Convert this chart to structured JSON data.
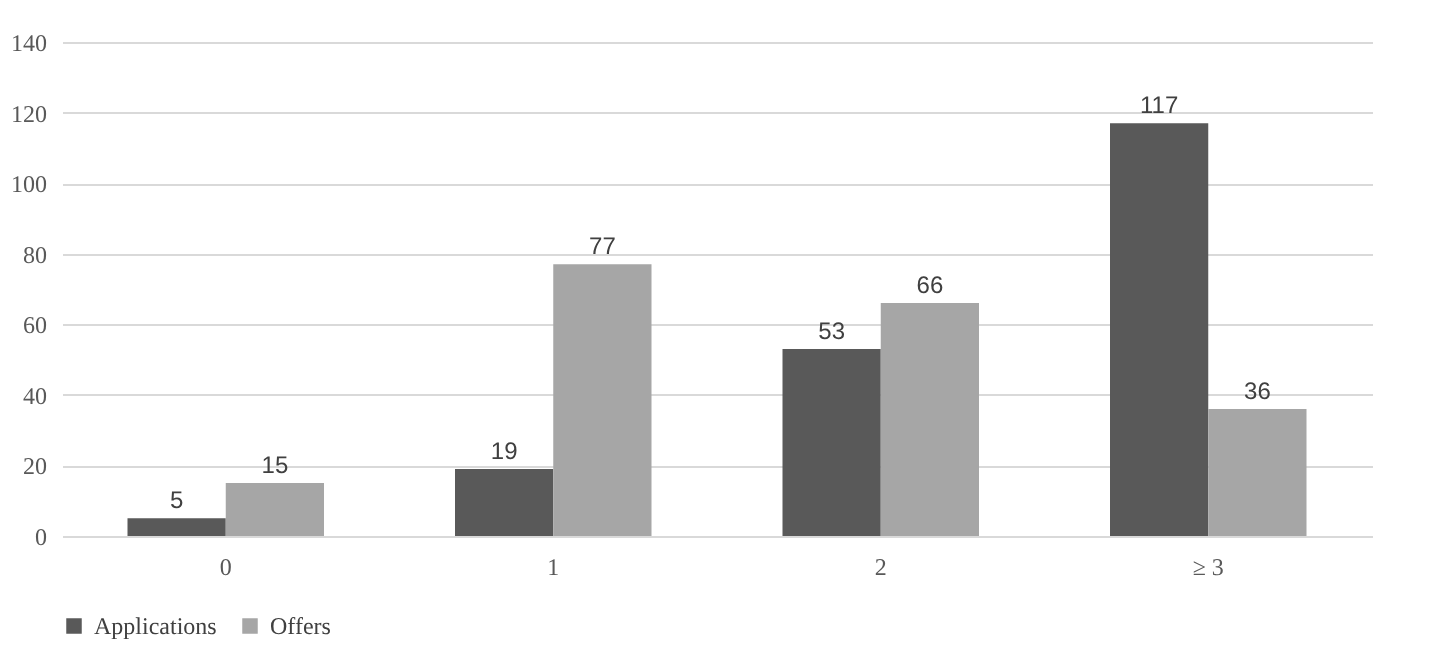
{
  "chart_data": {
    "type": "bar",
    "categories": [
      "0",
      "1",
      "2",
      "≥ 3"
    ],
    "series": [
      {
        "name": "Applications",
        "color": "#595959",
        "values": [
          5,
          19,
          53,
          117
        ]
      },
      {
        "name": "Offers",
        "color": "#a6a6a6",
        "values": [
          15,
          77,
          66,
          36
        ]
      }
    ],
    "ylim": [
      0,
      140
    ],
    "yticks": [
      0,
      20,
      40,
      60,
      80,
      100,
      120,
      140
    ],
    "grid": "y",
    "legend": "bottom",
    "data_labels": true
  }
}
